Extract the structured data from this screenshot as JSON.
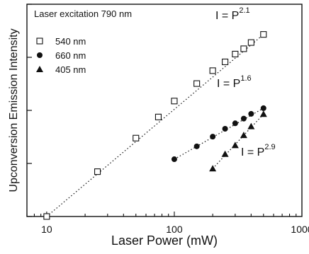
{
  "chart_data": {
    "type": "scatter",
    "xlabel": "Laser Power (mW)",
    "ylabel": "Upconversion Emission Intensity",
    "xscale": "log",
    "yscale": "log",
    "xlim": [
      7,
      1000
    ],
    "ylim": [
      1,
      10000
    ],
    "x_tick_labels": [
      "10",
      "100",
      "1000"
    ],
    "y_tick_labels": [],
    "grid": false,
    "legend_position": "top-left",
    "annotation": "Laser excitation 790 nm",
    "series": [
      {
        "name": "540 nm",
        "marker": "open-square",
        "x": [
          10,
          25,
          50,
          75,
          100,
          150,
          200,
          250,
          300,
          350,
          400,
          500
        ],
        "y": [
          1.0,
          7.0,
          30,
          75,
          150,
          320,
          560,
          820,
          1150,
          1450,
          1900,
          2700
        ],
        "fit_label": "I = P",
        "fit_exponent": "2.1"
      },
      {
        "name": "660 nm",
        "marker": "filled-circle",
        "x": [
          100,
          150,
          200,
          250,
          300,
          350,
          400,
          500
        ],
        "y": [
          12.0,
          21,
          32,
          45,
          57,
          70,
          86,
          110
        ],
        "fit_label": "I = P",
        "fit_exponent": "1.6"
      },
      {
        "name": "405 nm",
        "marker": "filled-triangle",
        "x": [
          200,
          250,
          300,
          350,
          400,
          500
        ],
        "y": [
          8.0,
          15,
          22,
          34,
          50,
          85
        ],
        "fit_label": "I = P",
        "fit_exponent": "2.9"
      }
    ]
  }
}
